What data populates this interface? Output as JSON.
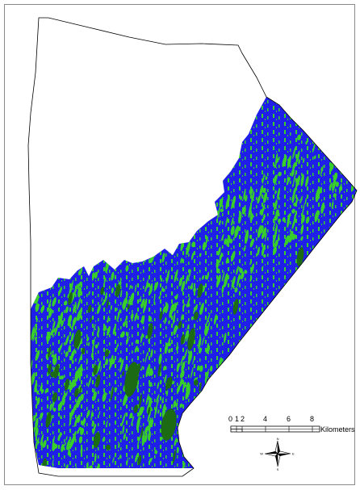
{
  "colors": {
    "background": "#ffffff",
    "frame": "#8a8a8a",
    "boundary": "#000000",
    "class_blue": "#1f1fe8",
    "class_light_green": "#39cf2a",
    "class_dark_green": "#1c6a14"
  },
  "scale_bar": {
    "ticks": [
      "0",
      "1",
      "2",
      "4",
      "6",
      "8"
    ],
    "units": "Kilometers"
  },
  "north_arrow": {
    "icon": "compass-rose-icon",
    "labels": [
      "N",
      "E",
      "S",
      "W"
    ]
  }
}
